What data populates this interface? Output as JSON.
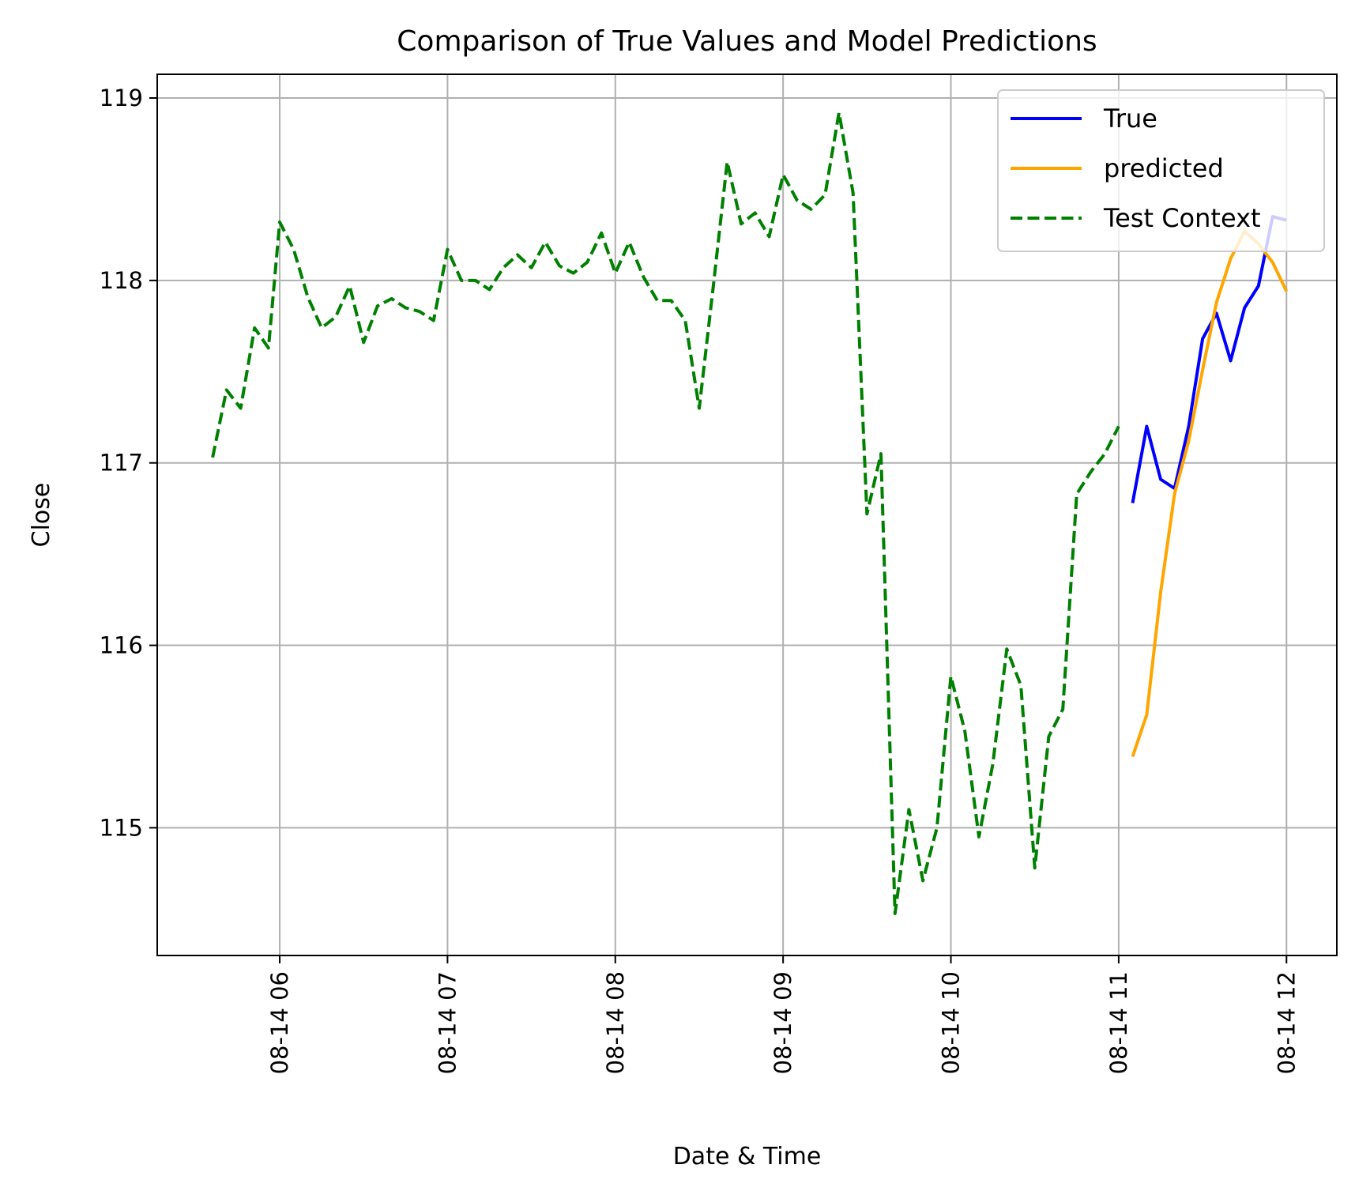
{
  "chart_data": {
    "type": "line",
    "title": "Comparison of True Values and Model Predictions",
    "xlabel": "Date & Time",
    "ylabel": "Close",
    "x_unit": "time of day on 08-14 (hours)",
    "xlim": [
      5.27,
      12.3
    ],
    "ylim": [
      114.3,
      119.13
    ],
    "grid": true,
    "legend_position": "top-right",
    "x_ticks": [
      {
        "value": 6,
        "label": "08-14 06"
      },
      {
        "value": 7,
        "label": "08-14 07"
      },
      {
        "value": 8,
        "label": "08-14 08"
      },
      {
        "value": 9,
        "label": "08-14 09"
      },
      {
        "value": 10,
        "label": "08-14 10"
      },
      {
        "value": 11,
        "label": "08-14 11"
      },
      {
        "value": 12,
        "label": "08-14 12"
      }
    ],
    "y_ticks": [
      {
        "value": 115,
        "label": "115"
      },
      {
        "value": 116,
        "label": "116"
      },
      {
        "value": 117,
        "label": "117"
      },
      {
        "value": 118,
        "label": "118"
      },
      {
        "value": 119,
        "label": "119"
      }
    ],
    "series": [
      {
        "name": "True",
        "color": "#0000ff",
        "dash": "solid",
        "x": [
          11.083,
          11.167,
          11.25,
          11.333,
          11.417,
          11.5,
          11.583,
          11.667,
          11.75,
          11.833,
          11.917,
          12.0
        ],
        "y": [
          116.78,
          117.2,
          116.91,
          116.86,
          117.2,
          117.68,
          117.82,
          117.56,
          117.85,
          117.97,
          118.35,
          118.33
        ]
      },
      {
        "name": "predicted",
        "color": "#ffa500",
        "dash": "solid",
        "x": [
          11.083,
          11.167,
          11.25,
          11.333,
          11.417,
          11.5,
          11.583,
          11.667,
          11.75,
          11.833,
          11.917,
          12.0
        ],
        "y": [
          115.39,
          115.62,
          116.29,
          116.83,
          117.12,
          117.51,
          117.88,
          118.12,
          118.27,
          118.2,
          118.1,
          117.94
        ]
      },
      {
        "name": "Test Context",
        "color": "#008000",
        "dash": "dashed",
        "x": [
          5.6,
          5.683,
          5.767,
          5.85,
          5.933,
          6.0,
          6.083,
          6.167,
          6.25,
          6.333,
          6.417,
          6.5,
          6.583,
          6.667,
          6.75,
          6.833,
          6.917,
          7.0,
          7.083,
          7.167,
          7.25,
          7.333,
          7.417,
          7.5,
          7.583,
          7.667,
          7.75,
          7.833,
          7.917,
          8.0,
          8.083,
          8.167,
          8.25,
          8.333,
          8.417,
          8.5,
          8.583,
          8.667,
          8.75,
          8.833,
          8.917,
          9.0,
          9.083,
          9.167,
          9.25,
          9.333,
          9.417,
          9.5,
          9.583,
          9.667,
          9.75,
          9.833,
          9.917,
          10.0,
          10.083,
          10.167,
          10.25,
          10.333,
          10.417,
          10.5,
          10.583,
          10.667,
          10.75,
          10.833,
          10.917,
          11.0
        ],
        "y": [
          117.03,
          117.4,
          117.3,
          117.74,
          117.63,
          118.32,
          118.17,
          117.91,
          117.74,
          117.8,
          117.97,
          117.66,
          117.86,
          117.9,
          117.85,
          117.83,
          117.78,
          118.17,
          118.0,
          118.0,
          117.95,
          118.07,
          118.14,
          118.07,
          118.21,
          118.08,
          118.04,
          118.1,
          118.26,
          118.04,
          118.21,
          118.02,
          117.89,
          117.89,
          117.78,
          117.3,
          117.96,
          118.65,
          118.31,
          118.37,
          118.24,
          118.58,
          118.44,
          118.39,
          118.47,
          118.92,
          118.48,
          116.72,
          117.05,
          114.53,
          115.1,
          114.71,
          115.0,
          115.83,
          115.53,
          114.95,
          115.35,
          115.98,
          115.78,
          114.78,
          115.5,
          115.65,
          116.83,
          116.95,
          117.05,
          117.2
        ]
      }
    ]
  }
}
